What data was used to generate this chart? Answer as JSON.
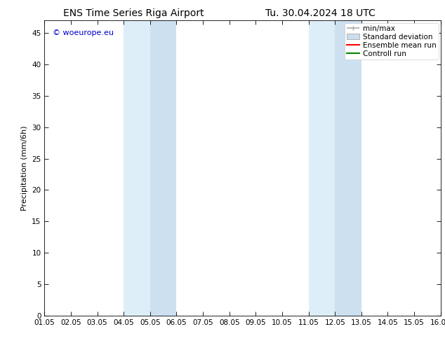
{
  "title_left": "ENS Time Series Riga Airport",
  "title_right": "Tu. 30.04.2024 18 UTC",
  "ylabel": "Precipitation (mm/6h)",
  "xlabel_ticks": [
    "01.05",
    "02.05",
    "03.05",
    "04.05",
    "05.05",
    "06.05",
    "07.05",
    "08.05",
    "09.05",
    "10.05",
    "11.05",
    "12.05",
    "13.05",
    "14.05",
    "15.05",
    "16.05"
  ],
  "xlim": [
    0,
    15
  ],
  "ylim": [
    0,
    47
  ],
  "yticks": [
    0,
    5,
    10,
    15,
    20,
    25,
    30,
    35,
    40,
    45
  ],
  "background_color": "#ffffff",
  "plot_bg_color": "#ffffff",
  "shaded_bands": [
    {
      "xstart": 3.0,
      "xend": 4.0,
      "color": "#ddeef8"
    },
    {
      "xstart": 4.0,
      "xend": 5.0,
      "color": "#cce0f0"
    },
    {
      "xstart": 10.0,
      "xend": 11.0,
      "color": "#ddeef8"
    },
    {
      "xstart": 11.0,
      "xend": 12.0,
      "color": "#cce0f0"
    }
  ],
  "watermark_text": "© woeurope.eu",
  "watermark_color": "#0000cc",
  "legend_items": [
    {
      "label": "min/max",
      "color": "#aaaaaa",
      "style": "minmax"
    },
    {
      "label": "Standard deviation",
      "color": "#ccddee",
      "style": "box"
    },
    {
      "label": "Ensemble mean run",
      "color": "#ff0000",
      "style": "line"
    },
    {
      "label": "Controll run",
      "color": "#008800",
      "style": "line"
    }
  ],
  "title_fontsize": 10,
  "tick_fontsize": 7.5,
  "ylabel_fontsize": 8,
  "legend_fontsize": 7.5,
  "watermark_fontsize": 8
}
